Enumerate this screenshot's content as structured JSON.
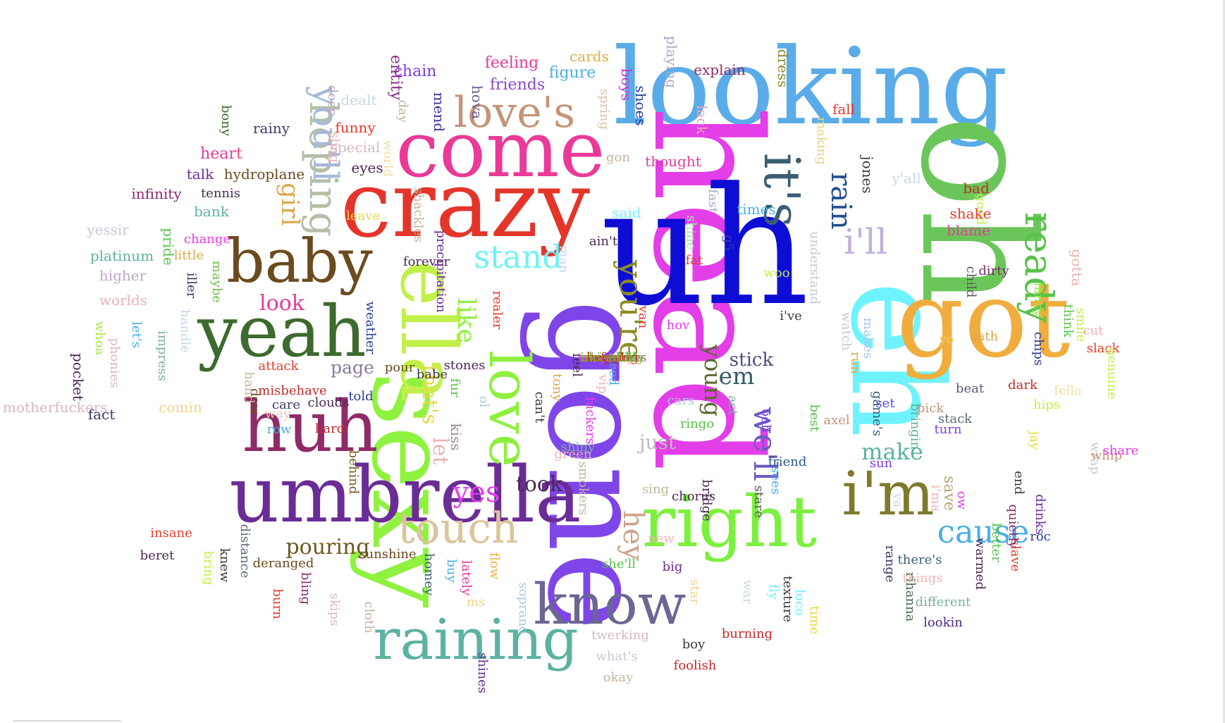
{
  "cloud": {
    "words": [
      {
        "text": "looking",
        "color": "#5aace8"
      },
      {
        "text": "head",
        "color": "#e33ee8"
      },
      {
        "text": "oh",
        "color": "#6bc65a"
      },
      {
        "text": "uh",
        "color": "#0d0dd6"
      },
      {
        "text": "gone",
        "color": "#7e45e8"
      },
      {
        "text": "eh",
        "color": "#6ff2ff"
      },
      {
        "text": "crazy",
        "color": "#e5352a"
      },
      {
        "text": "got",
        "color": "#f0ad3e"
      },
      {
        "text": "sexy",
        "color": "#8ef23e"
      },
      {
        "text": "umbrella",
        "color": "#6a2c96"
      },
      {
        "text": "come",
        "color": "#ea3a98"
      },
      {
        "text": "ella",
        "color": "#c2f04a"
      },
      {
        "text": "huh",
        "color": "#8f2b68"
      },
      {
        "text": "yeah",
        "color": "#3d6a2e"
      },
      {
        "text": "right",
        "color": "#7cf03e"
      },
      {
        "text": "baby",
        "color": "#6b4a1e"
      },
      {
        "text": "know",
        "color": "#6c6694"
      },
      {
        "text": "raining",
        "color": "#5cb2a0"
      },
      {
        "text": "i'm",
        "color": "#7d7a2c"
      },
      {
        "text": "love",
        "color": "#8ef03e"
      },
      {
        "text": "love's",
        "color": "#c49478"
      },
      {
        "text": "it's",
        "color": "#3a5e74"
      },
      {
        "text": "hoping",
        "color": "#b4bea8"
      },
      {
        "text": "touch",
        "color": "#dcc49a"
      },
      {
        "text": "you'll",
        "color": "#a8b8d8"
      },
      {
        "text": "cause",
        "color": "#4aaee8"
      },
      {
        "text": "stand",
        "color": "#6ff2f2"
      },
      {
        "text": "rain",
        "color": "#244f8f"
      },
      {
        "text": "i'll",
        "color": "#c2b0d8"
      },
      {
        "text": "ready",
        "color": "#58c24a"
      },
      {
        "text": "you're",
        "color": "#8e8a26"
      },
      {
        "text": "like",
        "color": "#8ef03e"
      },
      {
        "text": "girl",
        "color": "#dca84a"
      },
      {
        "text": "we'll",
        "color": "#6c5ac6"
      },
      {
        "text": "hey",
        "color": "#cca48a"
      },
      {
        "text": "look",
        "color": "#e63a98"
      },
      {
        "text": "yes",
        "color": "#e63aee"
      },
      {
        "text": "let",
        "color": "#e8b4b4"
      },
      {
        "text": "that's",
        "color": "#e8d84a"
      },
      {
        "text": "make",
        "color": "#5cb2a0"
      },
      {
        "text": "young",
        "color": "#5a6a2c"
      },
      {
        "text": "em",
        "color": "#355a6a"
      },
      {
        "text": "pouring",
        "color": "#6b5a1e"
      },
      {
        "text": "page",
        "color": "#8a7a9a"
      },
      {
        "text": "stick",
        "color": "#4a4e7a"
      },
      {
        "text": "took",
        "color": "#4a2a52"
      },
      {
        "text": "kiss",
        "color": "#9a8896"
      },
      {
        "text": "save",
        "color": "#b4a87a"
      },
      {
        "text": "just",
        "color": "#bebebe"
      },
      {
        "text": "chain",
        "color": "#7a3ee8"
      },
      {
        "text": "entity",
        "color": "#8a2a8a"
      },
      {
        "text": "hova",
        "color": "#6a5a8a"
      },
      {
        "text": "mend",
        "color": "#3a2aaa"
      },
      {
        "text": "feeling",
        "color": "#e63a98"
      },
      {
        "text": "friends",
        "color": "#8a48c6"
      },
      {
        "text": "cards",
        "color": "#dcb03e"
      },
      {
        "text": "figure",
        "color": "#4aaee8"
      },
      {
        "text": "spring",
        "color": "#d8c4a8"
      },
      {
        "text": "boys",
        "color": "#c43ac6"
      },
      {
        "text": "shoes",
        "color": "#2a3a9a"
      },
      {
        "text": "playing",
        "color": "#aaaaca"
      },
      {
        "text": "explain",
        "color": "#8a2a68"
      },
      {
        "text": "dress",
        "color": "#8a8a2a"
      },
      {
        "text": "lack",
        "color": "#e6a4b4"
      },
      {
        "text": "fall",
        "color": "#e63a2a"
      },
      {
        "text": "thought",
        "color": "#e63a98"
      },
      {
        "text": "gon",
        "color": "#c4b4a0"
      },
      {
        "text": "making",
        "color": "#e8d48a"
      },
      {
        "text": "jones",
        "color": "#3a3a3a"
      },
      {
        "text": "y'all",
        "color": "#c8d8e8"
      },
      {
        "text": "bad",
        "color": "#c42a2a"
      },
      {
        "text": "good",
        "color": "#c2f04a"
      },
      {
        "text": "shake",
        "color": "#e63a2a"
      },
      {
        "text": "blame",
        "color": "#e63a98"
      },
      {
        "text": "gotta",
        "color": "#e8b4b4"
      },
      {
        "text": "fancy",
        "color": "#8ef03e"
      },
      {
        "text": "think",
        "color": "#58c24a"
      },
      {
        "text": "rainy",
        "color": "#3a3a68"
      },
      {
        "text": "bony",
        "color": "#3a6a2a"
      },
      {
        "text": "deep",
        "color": "#bca8c8"
      },
      {
        "text": "dealt",
        "color": "#c8d8e8"
      },
      {
        "text": "day",
        "color": "#c4b4a0"
      },
      {
        "text": "funny",
        "color": "#e63a2a"
      },
      {
        "text": "sling",
        "color": "#e8b4b4"
      },
      {
        "text": "special",
        "color": "#d8b8c8"
      },
      {
        "text": "world",
        "color": "#f0e0a0"
      },
      {
        "text": "eyes",
        "color": "#4a2a52"
      },
      {
        "text": "heart",
        "color": "#e63a98"
      },
      {
        "text": "talk",
        "color": "#6a2c96"
      },
      {
        "text": "hydroplane",
        "color": "#6b4a1e"
      },
      {
        "text": "infinity",
        "color": "#8a2a68"
      },
      {
        "text": "tennis",
        "color": "#4a2a52"
      },
      {
        "text": "bank",
        "color": "#5cb2a0"
      },
      {
        "text": "leave",
        "color": "#e8d84a"
      },
      {
        "text": "shackles",
        "color": "#c4b4a0"
      },
      {
        "text": "said",
        "color": "#6ff2ff"
      },
      {
        "text": "fast",
        "color": "#aaaaca"
      },
      {
        "text": "times",
        "color": "#4aaee8"
      },
      {
        "text": "yessir",
        "color": "#c8c8d8"
      },
      {
        "text": "pride",
        "color": "#58c24a"
      },
      {
        "text": "change",
        "color": "#e63aee"
      },
      {
        "text": "platinum",
        "color": "#5cb2a0"
      },
      {
        "text": "little",
        "color": "#dca84a"
      },
      {
        "text": "higher",
        "color": "#bca8c8"
      },
      {
        "text": "iller",
        "color": "#3a3a68"
      },
      {
        "text": "maybe",
        "color": "#6ac24a"
      },
      {
        "text": "worlds",
        "color": "#e8b4b4"
      },
      {
        "text": "forever",
        "color": "#4a2a52"
      },
      {
        "text": "precipitation",
        "color": "#6a2c96"
      },
      {
        "text": "man",
        "color": "#c8d8e8"
      },
      {
        "text": "ain't",
        "color": "#4a2a52"
      },
      {
        "text": "shine",
        "color": "#a8e8a8"
      },
      {
        "text": "fat",
        "color": "#e63a2a"
      },
      {
        "text": "g5",
        "color": "#3a3aaa"
      },
      {
        "text": "woo",
        "color": "#c2f04a"
      },
      {
        "text": "understand",
        "color": "#c8c8d8"
      },
      {
        "text": "i've",
        "color": "#3a3a3a"
      },
      {
        "text": "child",
        "color": "#5a5a5a"
      },
      {
        "text": "dirty",
        "color": "#7a2a68"
      },
      {
        "text": "let's",
        "color": "#4aaee8"
      },
      {
        "text": "whoa",
        "color": "#a8e848"
      },
      {
        "text": "phonies",
        "color": "#d8b8c8"
      },
      {
        "text": "handle",
        "color": "#c8d8e8"
      },
      {
        "text": "impress",
        "color": "#7ab2a0"
      },
      {
        "text": "weather",
        "color": "#2a3a9a"
      },
      {
        "text": "realer",
        "color": "#e63a2a"
      },
      {
        "text": "van",
        "color": "#e63a2a"
      },
      {
        "text": "hov",
        "color": "#e63aee"
      },
      {
        "text": "watch",
        "color": "#c8c8d8"
      },
      {
        "text": "run",
        "color": "#dca84a"
      },
      {
        "text": "makes",
        "color": "#a8c8e8"
      },
      {
        "text": "yo",
        "color": "#f0d06a"
      },
      {
        "text": "oath",
        "color": "#dca84a"
      },
      {
        "text": "smile",
        "color": "#c2f04a"
      },
      {
        "text": "cut",
        "color": "#f0b4b4"
      },
      {
        "text": "slack",
        "color": "#e63a2a"
      },
      {
        "text": "genuine",
        "color": "#c2f04a"
      },
      {
        "text": "fella",
        "color": "#f0e0a0"
      },
      {
        "text": "chips",
        "color": "#2a3a9a"
      },
      {
        "text": "dark",
        "color": "#c42a2a"
      },
      {
        "text": "beat",
        "color": "#5a5a7a"
      },
      {
        "text": "pick",
        "color": "#c49478"
      },
      {
        "text": "stack",
        "color": "#5a6a7a"
      },
      {
        "text": "game's",
        "color": "#3a5e74"
      },
      {
        "text": "set",
        "color": "#4a4ee8"
      },
      {
        "text": "bringin",
        "color": "#5cb2a0"
      },
      {
        "text": "turn",
        "color": "#7a3ee8"
      },
      {
        "text": "jay",
        "color": "#e8d84a"
      },
      {
        "text": "hips",
        "color": "#c2f04a"
      },
      {
        "text": "wrap",
        "color": "#c8c8d8"
      },
      {
        "text": "whip",
        "color": "#c49478"
      },
      {
        "text": "share",
        "color": "#e63aee"
      },
      {
        "text": "pocket",
        "color": "#4a2a52"
      },
      {
        "text": "motherfuckers",
        "color": "#d8b8c8"
      },
      {
        "text": "fact",
        "color": "#3a3a68"
      },
      {
        "text": "comin",
        "color": "#f0d48a"
      },
      {
        "text": "dow",
        "color": "#6b4a1e"
      },
      {
        "text": "attack",
        "color": "#e63a2a"
      },
      {
        "text": "hand",
        "color": "#c4b4a0"
      },
      {
        "text": "misbehave",
        "color": "#c42a2a"
      },
      {
        "text": "clouds",
        "color": "#4a2a52"
      },
      {
        "text": "told",
        "color": "#2a3a9a"
      },
      {
        "text": "pour",
        "color": "#6b4a1e"
      },
      {
        "text": "babe",
        "color": "#3a3a3a"
      },
      {
        "text": "fur",
        "color": "#58c24a"
      },
      {
        "text": "stones",
        "color": "#4a2a52"
      },
      {
        "text": "feel",
        "color": "#4a2a52"
      },
      {
        "text": "need",
        "color": "#4aaee8"
      },
      {
        "text": "tony",
        "color": "#dca84a"
      },
      {
        "text": "ol",
        "color": "#a8c8e8"
      },
      {
        "text": "can't",
        "color": "#3a3a3a"
      },
      {
        "text": "vip",
        "color": "#f0b4b4"
      },
      {
        "text": "cars",
        "color": "#a8c8e8"
      },
      {
        "text": "act",
        "color": "#7ab2a0"
      },
      {
        "text": "ooh",
        "color": "#7a3ee8"
      },
      {
        "text": "best",
        "color": "#58c24a"
      },
      {
        "text": "axel",
        "color": "#c49478"
      },
      {
        "text": "way",
        "color": "#e8c8b8"
      },
      {
        "text": "care",
        "color": "#3a3a68"
      },
      {
        "text": "row",
        "color": "#4aaee8"
      },
      {
        "text": "hard",
        "color": "#c42a2a"
      },
      {
        "text": "behind",
        "color": "#7a5a1e"
      },
      {
        "text": "fuckers",
        "color": "#e63aee"
      },
      {
        "text": "shiny",
        "color": "#7ab2a0"
      },
      {
        "text": "smokers",
        "color": "#c4b4a0"
      },
      {
        "text": "green",
        "color": "#e8b4b4"
      },
      {
        "text": "ringo",
        "color": "#58c24a"
      },
      {
        "text": "sees",
        "color": "#4aaee8"
      },
      {
        "text": "stare",
        "color": "#5a5a5a"
      },
      {
        "text": "chorus",
        "color": "#4a2a52"
      },
      {
        "text": "friend",
        "color": "#2a5a8a"
      },
      {
        "text": "sun",
        "color": "#7a3ee8"
      },
      {
        "text": "ya",
        "color": "#c8d8e8"
      },
      {
        "text": "i'ma",
        "color": "#f0b4b4"
      },
      {
        "text": "ow",
        "color": "#e63aee"
      },
      {
        "text": "end",
        "color": "#3a3a3a"
      },
      {
        "text": "drinks",
        "color": "#6a2c96"
      },
      {
        "text": "roc",
        "color": "#2a3a9a"
      },
      {
        "text": "slave",
        "color": "#e63a2a"
      },
      {
        "text": "better",
        "color": "#58c24a"
      },
      {
        "text": "quietly",
        "color": "#8a2a68"
      },
      {
        "text": "insane",
        "color": "#e63a2a"
      },
      {
        "text": "beret",
        "color": "#4a2a52"
      },
      {
        "text": "bring",
        "color": "#c2f04a"
      },
      {
        "text": "distance",
        "color": "#5a6a7a"
      },
      {
        "text": "knew",
        "color": "#3a3a3a"
      },
      {
        "text": "deranged",
        "color": "#6b4a1e"
      },
      {
        "text": "bling",
        "color": "#8a2a68"
      },
      {
        "text": "burn",
        "color": "#e63a2a"
      },
      {
        "text": "skips",
        "color": "#d8b8c8"
      },
      {
        "text": "cloth",
        "color": "#c4b4a0"
      },
      {
        "text": "sunshine",
        "color": "#6b4a1e"
      },
      {
        "text": "homey",
        "color": "#3a5e74"
      },
      {
        "text": "buy",
        "color": "#4aaee8"
      },
      {
        "text": "lately",
        "color": "#e63a98"
      },
      {
        "text": "flow",
        "color": "#f0ad3e"
      },
      {
        "text": "ms",
        "color": "#f0d48a"
      },
      {
        "text": "soprano",
        "color": "#a8c8e8"
      },
      {
        "text": "shines",
        "color": "#6a2c96"
      },
      {
        "text": "sing",
        "color": "#c4b4a0"
      },
      {
        "text": "bridge",
        "color": "#4a2a52"
      },
      {
        "text": "new",
        "color": "#f0b4b4"
      },
      {
        "text": "she'll",
        "color": "#58c24a"
      },
      {
        "text": "big",
        "color": "#6a2c96"
      },
      {
        "text": "star",
        "color": "#f0d48a"
      },
      {
        "text": "war",
        "color": "#c8d8e8"
      },
      {
        "text": "fly",
        "color": "#6ff2ff"
      },
      {
        "text": "texture",
        "color": "#3a3a3a"
      },
      {
        "text": "loco",
        "color": "#6ff2ff"
      },
      {
        "text": "time",
        "color": "#e8d84a"
      },
      {
        "text": "range",
        "color": "#3a3a68"
      },
      {
        "text": "rihanna",
        "color": "#4a6a4a"
      },
      {
        "text": "there's",
        "color": "#3a5e74"
      },
      {
        "text": "things",
        "color": "#f0b4b4"
      },
      {
        "text": "warmed",
        "color": "#4a2a52"
      },
      {
        "text": "different",
        "color": "#7ab2a0"
      },
      {
        "text": "lookin",
        "color": "#4a2a8a"
      },
      {
        "text": "twerking",
        "color": "#d8b8c8"
      },
      {
        "text": "what's",
        "color": "#c8c8d8"
      },
      {
        "text": "okay",
        "color": "#c4b4a0"
      },
      {
        "text": "boy",
        "color": "#3a3a3a"
      },
      {
        "text": "foolish",
        "color": "#c42a2a"
      },
      {
        "text": "burning",
        "color": "#c42a2a"
      },
      {
        "text": "magazines",
        "color": "#e63aee"
      },
      {
        "text": "history",
        "color": "#c49478"
      },
      {
        "text": "chinchilla",
        "color": "#58c24a"
      },
      {
        "text": "fool",
        "color": "#c42a2a"
      },
      {
        "text": "begging",
        "color": "#c42a2a"
      },
      {
        "text": "incredibly",
        "color": "#7ab220"
      }
    ]
  }
}
